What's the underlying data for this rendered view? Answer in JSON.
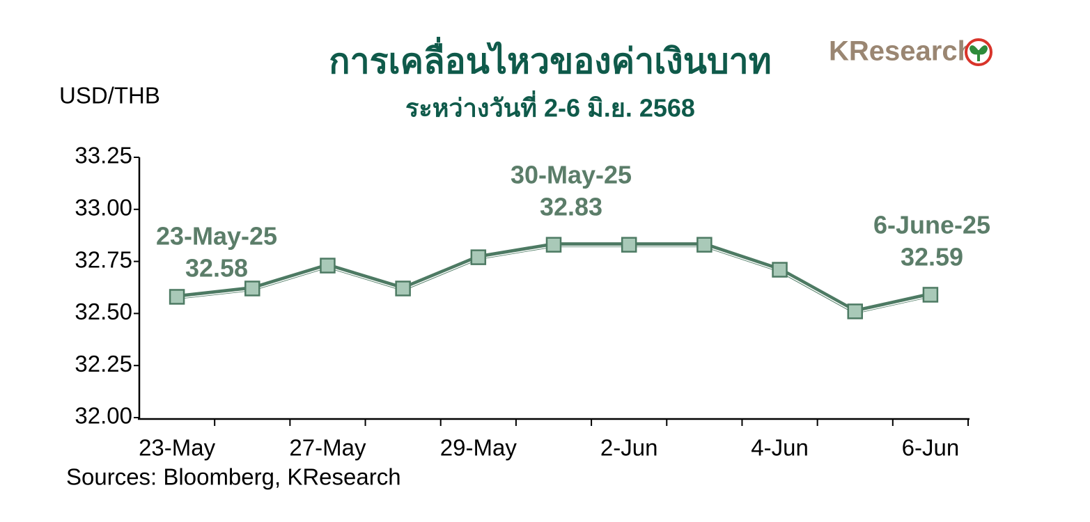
{
  "logo": "KResearch",
  "chart_data": {
    "type": "line",
    "title": "การเคลื่อนไหวของค่าเงินบาท",
    "subtitle": "ระหว่างวันที่ 2-6 มิ.ย. 2568",
    "y_label": "USD/THB",
    "source": "Sources: Bloomberg, KResearch",
    "categories": [
      "23-May",
      null,
      "27-May",
      null,
      "29-May",
      null,
      "2-Jun",
      null,
      "4-Jun",
      null,
      "6-Jun"
    ],
    "series": [
      {
        "name": "USD/THB",
        "color": "#4d7a63",
        "marker_color": "#a9c9b8",
        "values": [
          32.58,
          32.62,
          32.73,
          32.62,
          32.77,
          32.83,
          32.83,
          32.83,
          32.71,
          32.51,
          32.59
        ]
      }
    ],
    "ylim": [
      32.0,
      33.25
    ],
    "yticks": [
      {
        "value": 32.0,
        "label": "32.00"
      },
      {
        "value": 32.25,
        "label": "32.25"
      },
      {
        "value": 32.5,
        "label": "32.50"
      },
      {
        "value": 32.75,
        "label": "32.75"
      },
      {
        "value": 33.0,
        "label": "33.00"
      },
      {
        "value": 33.25,
        "label": "33.25"
      }
    ],
    "grid": false,
    "annotations": [
      {
        "lines": [
          "23-May-25",
          "32.58"
        ]
      },
      {
        "lines": [
          "30-May-25",
          "32.83"
        ]
      },
      {
        "lines": [
          "6-June-25",
          "32.59"
        ]
      }
    ]
  }
}
